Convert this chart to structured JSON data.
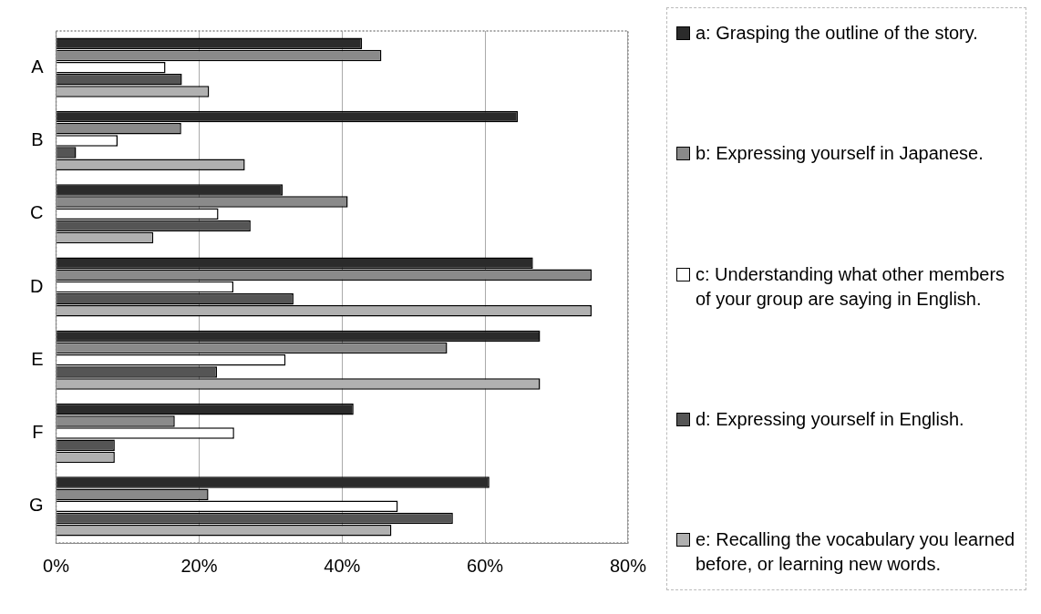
{
  "chart_data": {
    "type": "bar",
    "orientation": "horizontal",
    "categories": [
      "A",
      "B",
      "C",
      "D",
      "E",
      "F",
      "G"
    ],
    "series": [
      {
        "name": "a: Grasping the outline of the story.",
        "color": "#2b2b2b",
        "values": [
          42.8,
          64.6,
          31.7,
          66.7,
          67.7,
          41.6,
          60.6
        ]
      },
      {
        "name": "b: Expressing yourself in Japanese.",
        "color": "#8a8a8a",
        "values": [
          45.5,
          17.5,
          40.8,
          74.9,
          54.7,
          16.6,
          21.3
        ]
      },
      {
        "name": "c: Understanding what other members of your group are saying in English.",
        "color": "#ffffff",
        "values": [
          15.3,
          8.6,
          22.7,
          24.8,
          32.1,
          24.9,
          47.8
        ]
      },
      {
        "name": "d: Expressing yourself in English.",
        "color": "#555555",
        "values": [
          17.6,
          2.8,
          27.2,
          33.2,
          22.5,
          8.2,
          55.5
        ]
      },
      {
        "name": "e: Recalling the vocabulary you learned before, or learning new words.",
        "color": "#b0b0b0",
        "values": [
          21.4,
          26.4,
          13.6,
          74.9,
          67.7,
          8.2,
          46.9
        ]
      }
    ],
    "xlim": [
      0,
      80
    ],
    "xticks": [
      {
        "value": 0,
        "label": "0%"
      },
      {
        "value": 20,
        "label": "20%"
      },
      {
        "value": 40,
        "label": "40%"
      },
      {
        "value": 60,
        "label": "60%"
      },
      {
        "value": 80,
        "label": "80%"
      }
    ],
    "grid": "x",
    "legend": "right"
  }
}
